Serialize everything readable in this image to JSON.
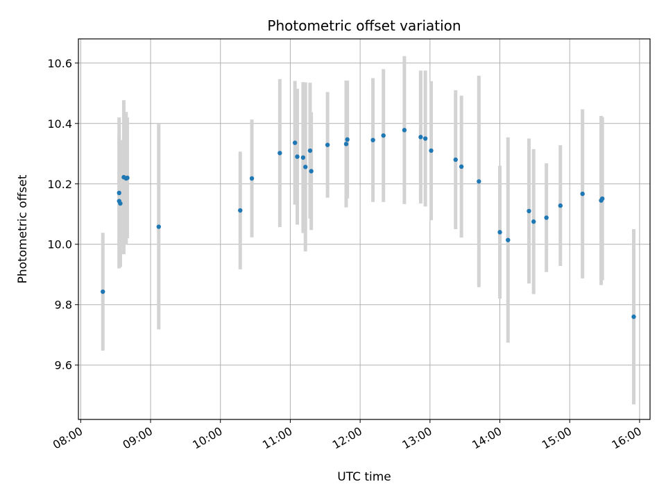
{
  "chart_data": {
    "type": "scatter",
    "title": "Photometric offset variation",
    "xlabel": "UTC time",
    "ylabel": "Photometric offset",
    "x_tick_labels": [
      "08:00",
      "09:00",
      "10:00",
      "11:00",
      "12:00",
      "13:00",
      "14:00",
      "15:00",
      "16:00"
    ],
    "y_tick_labels": [
      "9.6",
      "9.8",
      "10.0",
      "10.2",
      "10.4",
      "10.6"
    ],
    "xlim": [
      "07:58",
      "16:09"
    ],
    "ylim": [
      9.42,
      10.68
    ],
    "grid": true,
    "error_bar_color": "#d3d3d3",
    "marker_color": "#1f77b4",
    "points": [
      {
        "x": "08:19",
        "y": 9.843,
        "err": 0.195
      },
      {
        "x": "08:33",
        "y": 10.17,
        "err": 0.25
      },
      {
        "x": "08:33",
        "y": 10.143,
        "err": 0.22
      },
      {
        "x": "08:34",
        "y": 10.135,
        "err": 0.21
      },
      {
        "x": "08:37",
        "y": 10.222,
        "err": 0.255
      },
      {
        "x": "08:39",
        "y": 10.218,
        "err": 0.22
      },
      {
        "x": "08:40",
        "y": 10.22,
        "err": 0.2
      },
      {
        "x": "09:07",
        "y": 10.058,
        "err": 0.34
      },
      {
        "x": "10:17",
        "y": 10.112,
        "err": 0.195
      },
      {
        "x": "10:27",
        "y": 10.218,
        "err": 0.195
      },
      {
        "x": "10:51",
        "y": 10.302,
        "err": 0.245
      },
      {
        "x": "11:04",
        "y": 10.336,
        "err": 0.205
      },
      {
        "x": "11:06",
        "y": 10.29,
        "err": 0.225
      },
      {
        "x": "11:11",
        "y": 10.287,
        "err": 0.25
      },
      {
        "x": "11:13",
        "y": 10.256,
        "err": 0.28
      },
      {
        "x": "11:17",
        "y": 10.31,
        "err": 0.225
      },
      {
        "x": "11:18",
        "y": 10.242,
        "err": 0.195
      },
      {
        "x": "11:32",
        "y": 10.329,
        "err": 0.175
      },
      {
        "x": "11:48",
        "y": 10.332,
        "err": 0.21
      },
      {
        "x": "11:49",
        "y": 10.347,
        "err": 0.195
      },
      {
        "x": "12:11",
        "y": 10.345,
        "err": 0.205
      },
      {
        "x": "12:20",
        "y": 10.36,
        "err": 0.22
      },
      {
        "x": "12:38",
        "y": 10.378,
        "err": 0.245
      },
      {
        "x": "12:52",
        "y": 10.355,
        "err": 0.22
      },
      {
        "x": "12:56",
        "y": 10.35,
        "err": 0.225
      },
      {
        "x": "13:01",
        "y": 10.31,
        "err": 0.23
      },
      {
        "x": "13:22",
        "y": 10.28,
        "err": 0.23
      },
      {
        "x": "13:27",
        "y": 10.257,
        "err": 0.235
      },
      {
        "x": "13:42",
        "y": 10.208,
        "err": 0.35
      },
      {
        "x": "14:00",
        "y": 10.04,
        "err": 0.22
      },
      {
        "x": "14:07",
        "y": 10.014,
        "err": 0.34
      },
      {
        "x": "14:25",
        "y": 10.11,
        "err": 0.24
      },
      {
        "x": "14:29",
        "y": 10.075,
        "err": 0.24
      },
      {
        "x": "14:40",
        "y": 10.088,
        "err": 0.18
      },
      {
        "x": "14:52",
        "y": 10.128,
        "err": 0.2
      },
      {
        "x": "15:11",
        "y": 10.167,
        "err": 0.28
      },
      {
        "x": "15:27",
        "y": 10.145,
        "err": 0.28
      },
      {
        "x": "15:28",
        "y": 10.151,
        "err": 0.27
      },
      {
        "x": "15:55",
        "y": 9.76,
        "err": 0.29
      }
    ]
  }
}
